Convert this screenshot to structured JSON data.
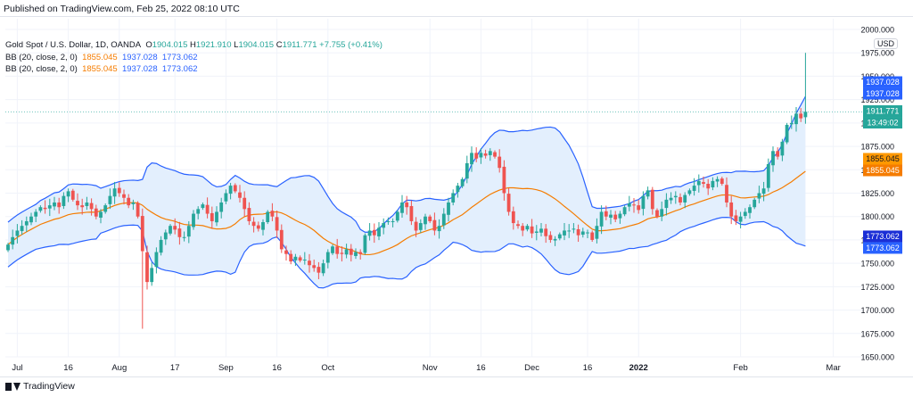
{
  "published": "Published on TradingView.com, Feb 25, 2022 08:10 UTC",
  "footer": {
    "brand": "TradingView",
    "brand_icon": "tradingview-logo-icon"
  },
  "currency_badge": "USD",
  "legend": {
    "symbol": "Gold Spot / U.S. Dollar, 1D, OANDA",
    "o_label": "O",
    "o_value": "1904.015",
    "h_label": "H",
    "h_value": "1921.910",
    "l_label": "L",
    "l_value": "1904.015",
    "c_label": "C",
    "c_value": "1911.771",
    "change": "+7.755 (+0.41%)",
    "indicators": [
      {
        "name": "BB (20, close, 2, 0)",
        "basis": "1855.045",
        "upper": "1937.028",
        "lower": "1773.062"
      },
      {
        "name": "BB (20, close, 2, 0)",
        "basis": "1855.045",
        "upper": "1937.028",
        "lower": "1773.062"
      }
    ]
  },
  "price_labels": {
    "upper_top": "1937.028",
    "upper_bottom": "1937.028",
    "last_price": "1911.771",
    "countdown": "13:49:02",
    "basis_top": "1855.045",
    "basis_bottom": "1855.045",
    "lower_top": "1773.062",
    "lower_bottom": "1773.062"
  },
  "colors": {
    "up": "#26a69a",
    "down": "#ef5350",
    "basis": "#f57c00",
    "band": "#2962ff",
    "band_fill": "#e3effd",
    "last_line": "#26a69a",
    "grid": "#f0f3fa"
  },
  "chart_data": {
    "type": "candlestick",
    "title": "Gold Spot / U.S. Dollar, 1D, OANDA",
    "ylim": [
      1650,
      2000
    ],
    "y_ticks": [
      "2000.000",
      "1975.000",
      "1950.000",
      "1925.000",
      "1900.000",
      "1875.000",
      "1850.000",
      "1825.000",
      "1800.000",
      "1775.000",
      "1750.000",
      "1725.000",
      "1700.000",
      "1675.000",
      "1650.000"
    ],
    "x_ticks": [
      {
        "label": "Jul",
        "index": 2,
        "bold": false
      },
      {
        "label": "16",
        "index": 13,
        "bold": false
      },
      {
        "label": "Aug",
        "index": 24,
        "bold": false
      },
      {
        "label": "17",
        "index": 36,
        "bold": false
      },
      {
        "label": "Sep",
        "index": 47,
        "bold": false
      },
      {
        "label": "16",
        "index": 58,
        "bold": false
      },
      {
        "label": "Oct",
        "index": 69,
        "bold": false
      },
      {
        "label": "Nov",
        "index": 91,
        "bold": false
      },
      {
        "label": "16",
        "index": 102,
        "bold": false
      },
      {
        "label": "Dec",
        "index": 113,
        "bold": false
      },
      {
        "label": "16",
        "index": 125,
        "bold": false
      },
      {
        "label": "2022",
        "index": 136,
        "bold": true
      },
      {
        "label": "Feb",
        "index": 158,
        "bold": false
      },
      {
        "label": "Mar",
        "index": 178,
        "bold": false
      }
    ],
    "closes": [
      1770,
      1778,
      1785,
      1790,
      1795,
      1800,
      1805,
      1810,
      1808,
      1812,
      1815,
      1810,
      1822,
      1827,
      1818,
      1812,
      1810,
      1815,
      1808,
      1800,
      1805,
      1812,
      1822,
      1830,
      1825,
      1820,
      1812,
      1815,
      1800,
      1763,
      1730,
      1745,
      1762,
      1775,
      1783,
      1790,
      1786,
      1778,
      1778,
      1790,
      1803,
      1808,
      1813,
      1803,
      1795,
      1805,
      1815,
      1825,
      1833,
      1827,
      1820,
      1808,
      1795,
      1790,
      1787,
      1794,
      1805,
      1800,
      1785,
      1765,
      1760,
      1752,
      1757,
      1753,
      1754,
      1748,
      1745,
      1740,
      1750,
      1762,
      1768,
      1760,
      1760,
      1765,
      1759,
      1762,
      1760,
      1780,
      1785,
      1780,
      1788,
      1793,
      1795,
      1795,
      1805,
      1815,
      1810,
      1795,
      1785,
      1793,
      1800,
      1795,
      1785,
      1790,
      1803,
      1815,
      1825,
      1833,
      1840,
      1857,
      1868,
      1862,
      1868,
      1865,
      1870,
      1864,
      1852,
      1825,
      1805,
      1793,
      1790,
      1785,
      1790,
      1782,
      1784,
      1787,
      1779,
      1775,
      1776,
      1781,
      1785,
      1785,
      1787,
      1780,
      1784,
      1783,
      1775,
      1790,
      1805,
      1800,
      1802,
      1797,
      1803,
      1810,
      1814,
      1812,
      1807,
      1822,
      1828,
      1808,
      1800,
      1808,
      1818,
      1820,
      1822,
      1815,
      1823,
      1828,
      1833,
      1838,
      1835,
      1830,
      1838,
      1840,
      1835,
      1815,
      1800,
      1795,
      1800,
      1805,
      1810,
      1818,
      1825,
      1830,
      1856,
      1870,
      1864,
      1880,
      1898,
      1900,
      1910,
      1905,
      1912
    ]
  }
}
